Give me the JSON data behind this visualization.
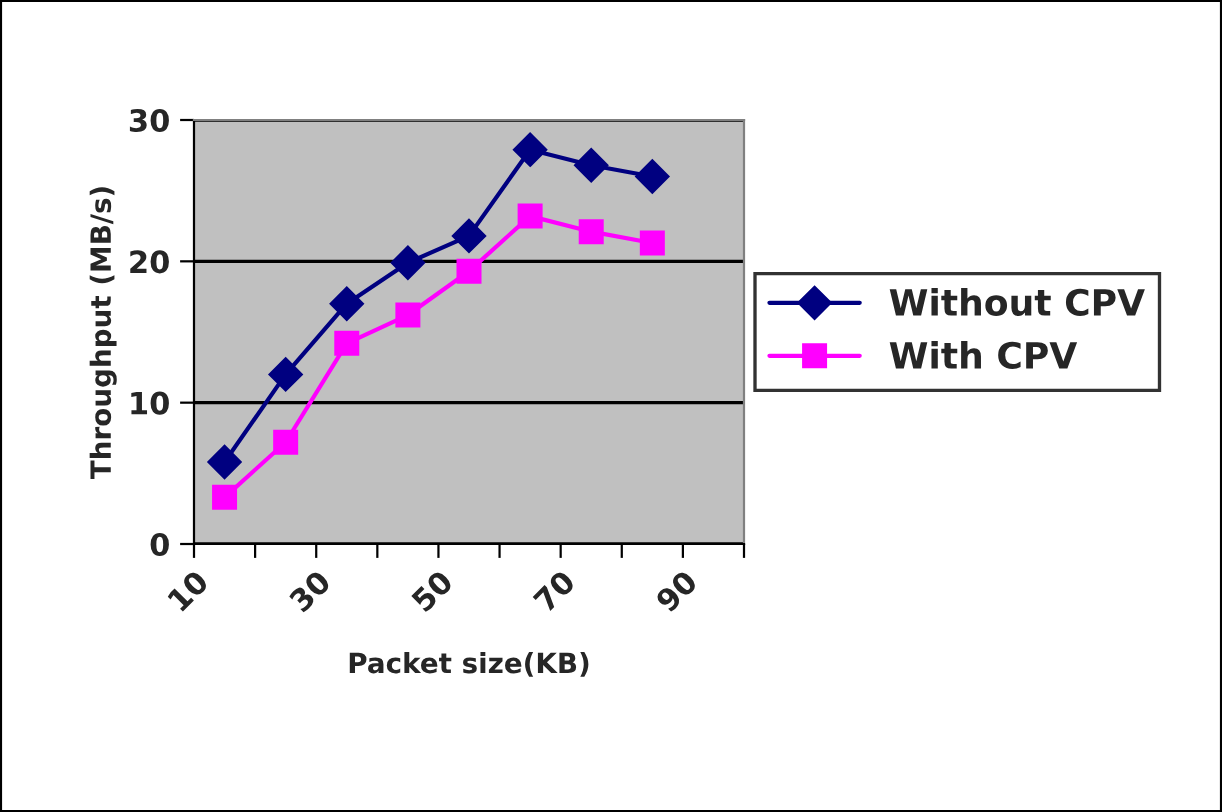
{
  "chart_data": {
    "type": "line",
    "xlabel": "Packet size(KB)",
    "ylabel": "Throughput (MB/s)",
    "x": [
      15,
      25,
      35,
      45,
      55,
      65,
      75,
      85
    ],
    "series": [
      {
        "name": "Without CPV",
        "color": "#000080",
        "marker": "diamond",
        "values": [
          5.8,
          12.0,
          17.0,
          19.9,
          21.8,
          27.9,
          26.8,
          26.0
        ]
      },
      {
        "name": "With CPV",
        "color": "#ff00ff",
        "marker": "square",
        "values": [
          3.3,
          7.2,
          14.2,
          16.2,
          19.3,
          23.2,
          22.1,
          21.3
        ]
      }
    ],
    "xlim": [
      10,
      100
    ],
    "xticks": [
      10,
      {
        "value": 20,
        "label": null
      },
      30,
      {
        "value": 40,
        "label": null
      },
      50,
      {
        "value": 60,
        "label": null
      },
      70,
      {
        "value": 80,
        "label": null
      },
      90,
      {
        "value": 100,
        "label": null
      }
    ],
    "ylim": [
      0,
      30
    ],
    "yticks": [
      0,
      10,
      20,
      30
    ],
    "grid": "y",
    "legend": "right",
    "line_style": "solid"
  }
}
